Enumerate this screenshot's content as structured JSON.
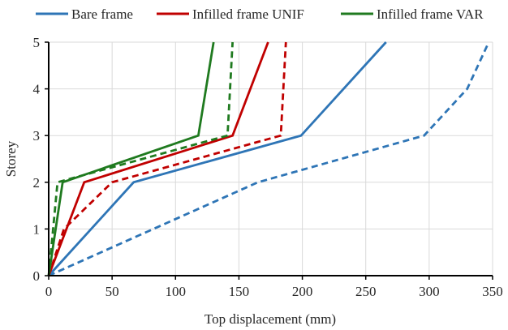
{
  "chart_data": {
    "type": "line",
    "title": "",
    "xlabel": "Top displacement (mm)",
    "ylabel": "Storey",
    "xlim": [
      0,
      350
    ],
    "ylim": [
      0,
      5
    ],
    "xticks": [
      0,
      50,
      100,
      150,
      200,
      250,
      300,
      350
    ],
    "yticks": [
      0,
      1,
      2,
      3,
      4,
      5
    ],
    "grid": true,
    "legend_position": "top",
    "legend": [
      {
        "name": "Bare frame",
        "color": "#2e75b6"
      },
      {
        "name": "Infilled frame UNIF",
        "color": "#c00000"
      },
      {
        "name": "Infilled frame VAR",
        "color": "#1f7a1f"
      }
    ],
    "series": [
      {
        "group": 0,
        "style": "solid",
        "color": "#2e75b6",
        "points": [
          [
            0,
            0
          ],
          [
            67,
            2
          ],
          [
            199,
            3
          ],
          [
            266,
            5
          ]
        ]
      },
      {
        "group": 0,
        "style": "dashed",
        "color": "#2e75b6",
        "points": [
          [
            0,
            0
          ],
          [
            165,
            2
          ],
          [
            296,
            3
          ],
          [
            330,
            4
          ],
          [
            347,
            5
          ]
        ]
      },
      {
        "group": 1,
        "style": "solid",
        "color": "#c00000",
        "points": [
          [
            0,
            0
          ],
          [
            28,
            2
          ],
          [
            145,
            3
          ],
          [
            173,
            5
          ]
        ]
      },
      {
        "group": 1,
        "style": "dashed",
        "color": "#c00000",
        "points": [
          [
            0,
            0
          ],
          [
            12,
            1
          ],
          [
            50,
            2
          ],
          [
            183,
            3
          ],
          [
            187,
            5
          ]
        ]
      },
      {
        "group": 2,
        "style": "solid",
        "color": "#1f7a1f",
        "points": [
          [
            0,
            0
          ],
          [
            11,
            2
          ],
          [
            118,
            3
          ],
          [
            130,
            5
          ]
        ]
      },
      {
        "group": 2,
        "style": "dashed",
        "color": "#1f7a1f",
        "points": [
          [
            0,
            0
          ],
          [
            7,
            2
          ],
          [
            141,
            3
          ],
          [
            145,
            5
          ]
        ]
      }
    ]
  }
}
